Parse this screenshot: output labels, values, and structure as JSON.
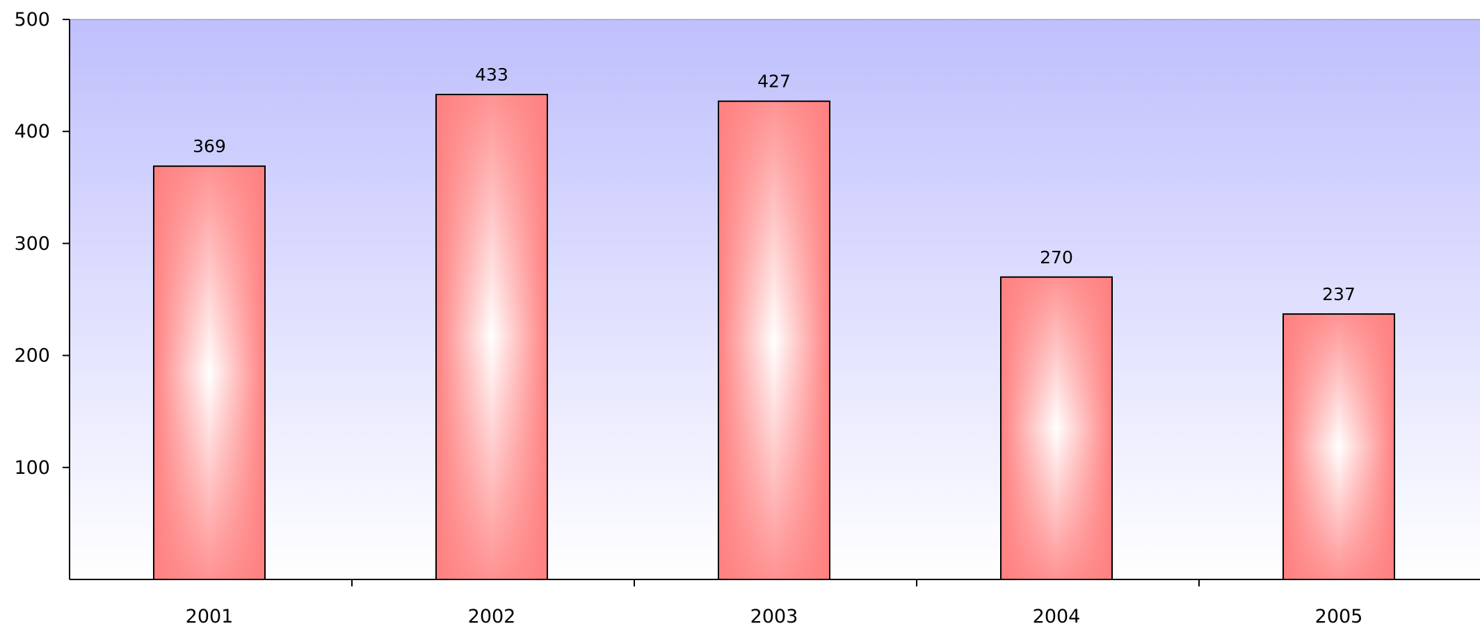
{
  "chart_data": {
    "type": "bar",
    "title": "",
    "xlabel": "",
    "ylabel": "",
    "categories": [
      "2001",
      "2002",
      "2003",
      "2004",
      "2005"
    ],
    "values": [
      369,
      433,
      427,
      270,
      237
    ],
    "data_labels": [
      "369",
      "433",
      "427",
      "270",
      "237"
    ],
    "ylim": [
      0,
      500
    ],
    "y_ticks": [
      100,
      200,
      300,
      400,
      500
    ],
    "y_tick_labels": [
      "100",
      "200",
      "300",
      "400",
      "500"
    ],
    "grid": false,
    "legend": "none",
    "colors": {
      "bar_edge": "#ff8080",
      "bar_center": "#ffffff",
      "bar_border": "#000000",
      "plot_top": "#bfbffd",
      "plot_bottom": "#ffffff",
      "axis": "#000000"
    }
  }
}
